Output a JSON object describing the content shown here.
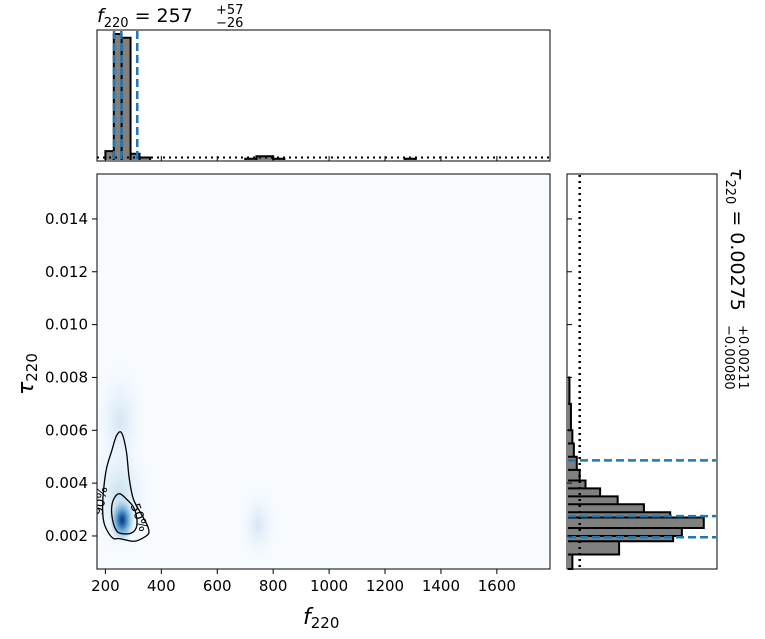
{
  "chart_data": {
    "type": "corner",
    "top_title": {
      "param": "f",
      "sub": "220",
      "eq": " = 257",
      "sup": "+57",
      "subsc": "−26"
    },
    "right_title": {
      "param": "τ",
      "sub": "220",
      "eq": " = 0.00275",
      "sup": "+0.00211",
      "subsc": "−0.00080"
    },
    "xlabel": {
      "param": "f",
      "sub": "220"
    },
    "ylabel": {
      "param": "τ",
      "sub": "220"
    },
    "xlim": [
      170,
      1790
    ],
    "ylim": [
      0.00075,
      0.0157
    ],
    "x_ticks": [
      200,
      400,
      600,
      800,
      1000,
      1200,
      1400,
      1600
    ],
    "x_tick_labels": [
      "200",
      "400",
      "600",
      "800",
      "1000",
      "1200",
      "1400",
      "1600"
    ],
    "y_ticks": [
      0.002,
      0.004,
      0.006,
      0.008,
      0.01,
      0.012,
      0.014
    ],
    "y_tick_labels": [
      "0.002",
      "0.004",
      "0.006",
      "0.008",
      "0.010",
      "0.012",
      "0.014"
    ],
    "f_hist": {
      "bins": [
        [
          200,
          230,
          0.07
        ],
        [
          230,
          258,
          1.0
        ],
        [
          258,
          290,
          0.97
        ],
        [
          290,
          322,
          0.05
        ],
        [
          322,
          360,
          0.02
        ],
        [
          700,
          740,
          0.01
        ],
        [
          740,
          800,
          0.03
        ],
        [
          800,
          840,
          0.01
        ],
        [
          1270,
          1310,
          0.01
        ]
      ],
      "quantiles": [
        231,
        257,
        314
      ],
      "prior_level": 0.02
    },
    "tau_hist": {
      "bins": [
        [
          0.00075,
          0.0013,
          0.03
        ],
        [
          0.0013,
          0.0018,
          0.35
        ],
        [
          0.0018,
          0.002,
          0.72
        ],
        [
          0.002,
          0.0023,
          0.78
        ],
        [
          0.0023,
          0.0027,
          0.93
        ],
        [
          0.0027,
          0.0029,
          0.7
        ],
        [
          0.0029,
          0.0032,
          0.52
        ],
        [
          0.0032,
          0.0035,
          0.34
        ],
        [
          0.0035,
          0.0038,
          0.22
        ],
        [
          0.0038,
          0.0041,
          0.12
        ],
        [
          0.0041,
          0.0045,
          0.08
        ],
        [
          0.0045,
          0.005,
          0.06
        ],
        [
          0.005,
          0.0055,
          0.04
        ],
        [
          0.0055,
          0.006,
          0.03
        ],
        [
          0.006,
          0.007,
          0.02
        ],
        [
          0.007,
          0.008,
          0.01
        ]
      ],
      "quantiles": [
        0.00195,
        0.00275,
        0.00486
      ],
      "prior_level": 0.08
    },
    "contours": [
      {
        "label": "50%",
        "points": [
          [
            255,
            0.0021
          ],
          [
            290,
            0.0021
          ],
          [
            310,
            0.0023
          ],
          [
            312,
            0.0027
          ],
          [
            300,
            0.0031
          ],
          [
            275,
            0.0034
          ],
          [
            250,
            0.0036
          ],
          [
            230,
            0.0034
          ],
          [
            222,
            0.003
          ],
          [
            228,
            0.0025
          ],
          [
            240,
            0.0022
          ]
        ]
      },
      {
        "label": "90%",
        "points": [
          [
            250,
            0.0019
          ],
          [
            300,
            0.0018
          ],
          [
            330,
            0.0019
          ],
          [
            355,
            0.0021
          ],
          [
            350,
            0.0024
          ],
          [
            330,
            0.0028
          ],
          [
            300,
            0.0034
          ],
          [
            285,
            0.0042
          ],
          [
            275,
            0.0052
          ],
          [
            258,
            0.0059
          ],
          [
            240,
            0.0058
          ],
          [
            222,
            0.0052
          ],
          [
            205,
            0.0046
          ],
          [
            195,
            0.0039
          ],
          [
            190,
            0.0031
          ],
          [
            195,
            0.0025
          ],
          [
            212,
            0.0021
          ],
          [
            230,
            0.0019
          ]
        ]
      }
    ],
    "density_peak": [
      260,
      0.0026
    ]
  }
}
